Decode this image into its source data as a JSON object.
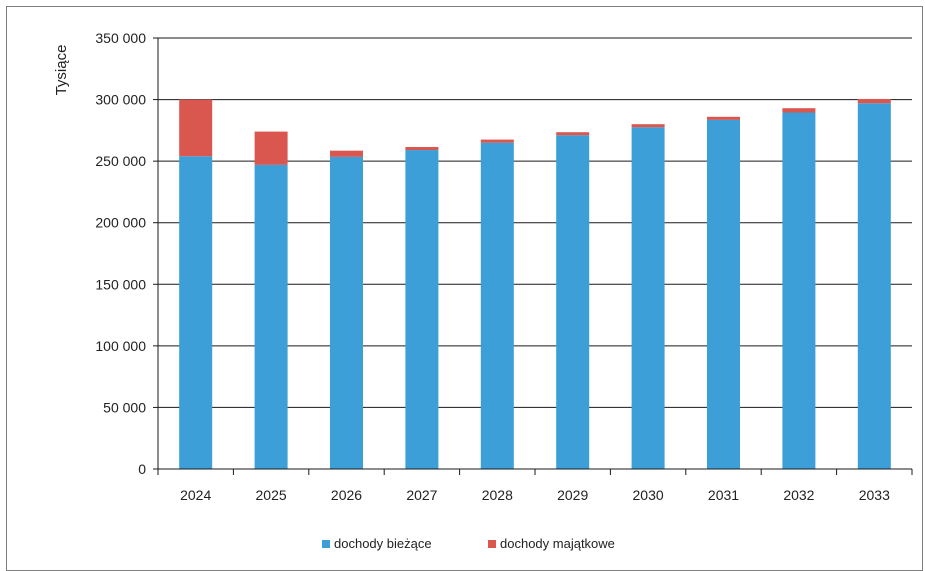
{
  "chart_data": {
    "type": "bar",
    "stacked": true,
    "categories": [
      "2024",
      "2025",
      "2026",
      "2027",
      "2028",
      "2029",
      "2030",
      "2031",
      "2032",
      "2033"
    ],
    "series": [
      {
        "name": "dochody bieżące",
        "color": "#3c9fd8",
        "values": [
          254000,
          247000,
          253500,
          259000,
          265000,
          271000,
          277500,
          283500,
          289500,
          297000
        ]
      },
      {
        "name": "dochody majątkowe",
        "color": "#d9574f",
        "values": [
          46000,
          27000,
          5000,
          2500,
          2500,
          2500,
          2500,
          2500,
          3500,
          3500
        ]
      }
    ],
    "ylabel": "Tysiące",
    "xlabel": "",
    "title": "",
    "ylim": [
      0,
      350000
    ],
    "yticks": [
      0,
      50000,
      100000,
      150000,
      200000,
      250000,
      300000,
      350000
    ],
    "ytick_labels": [
      "0",
      "50 000",
      "100 000",
      "150 000",
      "200 000",
      "250 000",
      "300 000",
      "350 000"
    ],
    "grid": true,
    "legend_position": "bottom"
  }
}
